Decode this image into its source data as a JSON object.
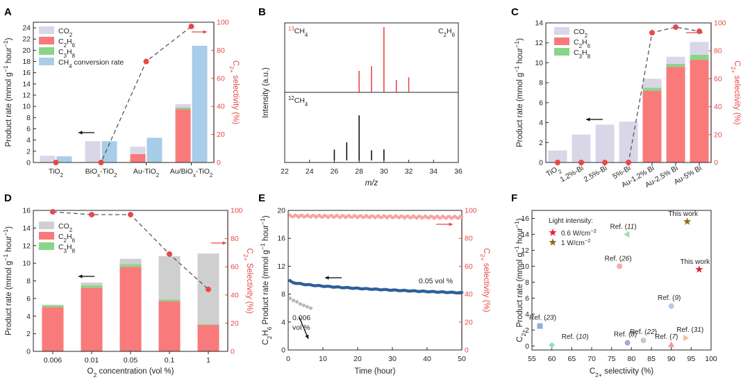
{
  "colors": {
    "co2": "#d9d6e8",
    "c2h6": "#f87a7a",
    "c3h8": "#8ad58a",
    "ch4": "#a8cde8",
    "sel": "#e84848",
    "sel_light": "#f7a3a3",
    "grey_bar": "#cfcfcf",
    "blue_line": "#2d5f9a",
    "grey_pts": "#b9b9b9",
    "axis": "#222222"
  },
  "chart_data": [
    {
      "panel": "A",
      "type": "bar",
      "categories": [
        "TiO2",
        "BiOx-TiO2",
        "Au-TiO2",
        "Au/BiOx-TiO2"
      ],
      "category_labels": [
        [
          "TiO",
          {
            "t": "2",
            "s": "sub"
          }
        ],
        [
          "BiO",
          {
            "t": "x",
            "s": "sub"
          },
          "-TiO",
          {
            "t": "2",
            "s": "sub"
          }
        ],
        [
          "Au-TiO",
          {
            "t": "2",
            "s": "sub"
          }
        ],
        [
          "Au/BiO",
          {
            "t": "x",
            "s": "sub"
          },
          "-TiO",
          {
            "t": "2",
            "s": "sub"
          }
        ]
      ],
      "series": [
        {
          "name": "CO2",
          "color": "co2",
          "values": [
            1.2,
            3.8,
            1.3,
            0.6
          ]
        },
        {
          "name": "C2H6",
          "color": "c2h6",
          "values": [
            0,
            0,
            1.5,
            9.5
          ]
        },
        {
          "name": "C3H8",
          "color": "c3h8",
          "values": [
            0,
            0,
            0,
            0.3
          ]
        },
        {
          "name": "CH4 conversion rate",
          "color": "ch4",
          "values": [
            1.1,
            3.8,
            4.4,
            20.8
          ]
        }
      ],
      "selectivity": [
        0,
        0,
        72,
        97
      ],
      "ylabel": "Product rate (mmol g-1 hour-1)",
      "ylabel_rich": [
        "Product rate (mmol g",
        {
          "t": "−1",
          "s": "sup"
        },
        " hour",
        {
          "t": "−1",
          "s": "sup"
        },
        ")"
      ],
      "y2label_rich": [
        "C",
        {
          "t": "2+",
          "s": "sub"
        },
        " selectivity (%)"
      ],
      "ylim": [
        0,
        25
      ],
      "yticks": [
        0,
        2,
        4,
        6,
        8,
        10,
        12,
        14,
        16,
        18,
        20,
        22,
        24
      ],
      "y2lim": [
        0,
        100
      ],
      "y2ticks": [
        0,
        20,
        40,
        60,
        80,
        100
      ],
      "legend": [
        {
          "rich": [
            "CO",
            {
              "t": "2",
              "s": "sub"
            }
          ],
          "color": "co2"
        },
        {
          "rich": [
            "C",
            {
              "t": "2",
              "s": "sub"
            },
            "H",
            {
              "t": "6",
              "s": "sub"
            }
          ],
          "color": "c2h6"
        },
        {
          "rich": [
            "C",
            {
              "t": "3",
              "s": "sub"
            },
            "H",
            {
              "t": "8",
              "s": "sub"
            }
          ],
          "color": "c3h8"
        },
        {
          "rich": [
            "CH",
            {
              "t": "4",
              "s": "sub"
            },
            " conversion rate"
          ],
          "color": "ch4"
        }
      ]
    },
    {
      "panel": "B",
      "type": "bar",
      "xlabel": "m/z",
      "ylabel": "Intensity (a.u.)",
      "xlim": [
        22,
        36
      ],
      "xticks": [
        22,
        24,
        26,
        28,
        30,
        32,
        34,
        36
      ],
      "top_label_rich": [
        {
          "t": "13",
          "s": "sup"
        },
        "CH",
        {
          "t": "4",
          "s": "sub"
        }
      ],
      "top_label_right_rich": [
        "C",
        {
          "t": "2",
          "s": "sub"
        },
        "H",
        {
          "t": "6",
          "s": "sub"
        }
      ],
      "bottom_label_rich": [
        {
          "t": "12",
          "s": "sup"
        },
        "CH",
        {
          "t": "4",
          "s": "sub"
        }
      ],
      "top_peaks": [
        {
          "x": 28,
          "y": 0.33
        },
        {
          "x": 29,
          "y": 0.4
        },
        {
          "x": 30,
          "y": 1.0
        },
        {
          "x": 31,
          "y": 0.19
        },
        {
          "x": 32,
          "y": 0.23
        }
      ],
      "bottom_peaks": [
        {
          "x": 26,
          "y": 0.15
        },
        {
          "x": 27,
          "y": 0.25
        },
        {
          "x": 28,
          "y": 0.62
        },
        {
          "x": 29,
          "y": 0.14
        },
        {
          "x": 30,
          "y": 0.15
        }
      ]
    },
    {
      "panel": "C",
      "type": "bar",
      "categories": [
        "TiO2",
        "1.2%-Bi",
        "2.5%-Bi",
        "5%-Bi",
        "Au-1.2% Bi",
        "Au-2.5% Bi",
        "Au-5% Bi"
      ],
      "category_labels": [
        [
          "TiO",
          {
            "t": "2",
            "s": "sub"
          }
        ],
        [
          "1.2%-Bi"
        ],
        [
          "2.5%-Bi"
        ],
        [
          "5%-Bi"
        ],
        [
          "Au-1.2% Bi"
        ],
        [
          "Au-2.5% Bi"
        ],
        [
          "Au-5% Bi"
        ]
      ],
      "series": [
        {
          "name": "CO2",
          "color": "co2",
          "values": [
            1.2,
            2.8,
            3.8,
            4.1,
            0.9,
            0.7,
            1.3
          ]
        },
        {
          "name": "C2H6",
          "color": "c2h6",
          "values": [
            0,
            0,
            0,
            0,
            7.2,
            9.6,
            10.3
          ]
        },
        {
          "name": "C3H8",
          "color": "c3h8",
          "values": [
            0,
            0,
            0,
            0,
            0.3,
            0.3,
            0.5
          ]
        }
      ],
      "selectivity": [
        0,
        0,
        0,
        0,
        93,
        97,
        94
      ],
      "ylabel_rich": [
        "Product rate (mmol g",
        {
          "t": "−1",
          "s": "sup"
        },
        " hour",
        {
          "t": "−1",
          "s": "sup"
        },
        ")"
      ],
      "y2label_rich": [
        "C",
        {
          "t": "2+",
          "s": "sub"
        },
        " selectivity (%)"
      ],
      "ylim": [
        0,
        14
      ],
      "yticks": [
        0,
        2,
        4,
        6,
        8,
        10,
        12,
        14
      ],
      "y2lim": [
        0,
        100
      ],
      "y2ticks": [
        0,
        20,
        40,
        60,
        80,
        100
      ],
      "legend": [
        {
          "rich": [
            "CO",
            {
              "t": "2",
              "s": "sub"
            }
          ],
          "color": "co2"
        },
        {
          "rich": [
            "C",
            {
              "t": "2",
              "s": "sub"
            },
            "H",
            {
              "t": "6",
              "s": "sub"
            }
          ],
          "color": "c2h6"
        },
        {
          "rich": [
            "C",
            {
              "t": "3",
              "s": "sub"
            },
            "H",
            {
              "t": "8",
              "s": "sub"
            }
          ],
          "color": "c3h8"
        }
      ]
    },
    {
      "panel": "D",
      "type": "bar",
      "categories": [
        "0.006",
        "0.01",
        "0.05",
        "0.1",
        "1"
      ],
      "series": [
        {
          "name": "CO2",
          "color": "grey_bar",
          "values": [
            0.1,
            0.3,
            0.6,
            4.9,
            8.0
          ]
        },
        {
          "name": "C2H6",
          "color": "c2h6",
          "values": [
            5.0,
            7.2,
            9.6,
            5.7,
            3.0
          ]
        },
        {
          "name": "C3H8",
          "color": "c3h8",
          "values": [
            0.2,
            0.3,
            0.3,
            0.2,
            0.1
          ]
        }
      ],
      "selectivity": [
        99,
        97,
        97,
        69,
        44
      ],
      "xlabel": "O2 concentration (vol %)",
      "xlabel_rich": [
        "O",
        {
          "t": "2",
          "s": "sub"
        },
        " concentration (vol %)"
      ],
      "ylabel_rich": [
        "Product rate (mmol g",
        {
          "t": "−1",
          "s": "sup"
        },
        " hour",
        {
          "t": "−1",
          "s": "sup"
        },
        ")"
      ],
      "y2label_rich": [
        "C",
        {
          "t": "2+",
          "s": "sub"
        },
        " Selectivity (%)"
      ],
      "ylim": [
        0,
        16
      ],
      "yticks": [
        0,
        2,
        4,
        6,
        8,
        10,
        12,
        14,
        16
      ],
      "y2lim": [
        0,
        100
      ],
      "y2ticks": [
        0,
        20,
        40,
        60,
        80,
        100
      ],
      "legend": [
        {
          "rich": [
            "CO",
            {
              "t": "2",
              "s": "sub"
            }
          ],
          "color": "grey_bar"
        },
        {
          "rich": [
            "C",
            {
              "t": "2",
              "s": "sub"
            },
            "H",
            {
              "t": "6",
              "s": "sub"
            }
          ],
          "color": "c2h6"
        },
        {
          "rich": [
            "C",
            {
              "t": "3",
              "s": "sub"
            },
            "H",
            {
              "t": "8",
              "s": "sub"
            }
          ],
          "color": "c3h8"
        }
      ]
    },
    {
      "panel": "E",
      "type": "scatter",
      "xlabel": "Time (hour)",
      "ylabel_rich": [
        "C",
        {
          "t": "2",
          "s": "sub"
        },
        "H",
        {
          "t": "6",
          "s": "sub"
        },
        " Product rate (mmol g",
        {
          "t": "−1",
          "s": "sup"
        },
        " hour",
        {
          "t": "−1",
          "s": "sup"
        },
        ")"
      ],
      "y2label_rich": [
        "C",
        {
          "t": "2+",
          "s": "sub"
        },
        " selectivity (%)"
      ],
      "xlim": [
        0,
        50
      ],
      "xticks": [
        0,
        10,
        20,
        30,
        40,
        50
      ],
      "ylim": [
        0,
        20
      ],
      "yticks": [
        0,
        4,
        8,
        12,
        16,
        20
      ],
      "y2lim": [
        0,
        100
      ],
      "y2ticks": [
        0,
        20,
        40,
        60,
        80,
        100
      ],
      "series": [
        {
          "name": "0.05 vol %",
          "color": "blue_line",
          "axis": "left",
          "x_start": 0.5,
          "x_end": 50,
          "y_start": 9.9,
          "y_end": 8.1
        },
        {
          "name": "selectivity",
          "color": "sel_light",
          "axis": "right",
          "x_start": 0.5,
          "x_end": 50,
          "y_start": 96,
          "y_end": 95
        },
        {
          "name": "0.006 vol %",
          "color": "grey_pts",
          "axis": "left",
          "x": [
            0.5,
            1.5,
            2.5,
            3.5,
            4.5,
            5.5,
            6.5
          ],
          "y": [
            7.4,
            7.1,
            6.9,
            6.6,
            6.4,
            6.2,
            6.0
          ]
        }
      ],
      "label_005": "0.05 vol %",
      "label_0006": [
        "0.006",
        "vol %"
      ]
    },
    {
      "panel": "F",
      "type": "scatter",
      "xlabel_rich": [
        "C",
        {
          "t": "2+",
          "s": "sub"
        },
        " selectivity (%)"
      ],
      "ylabel_rich": [
        "C",
        {
          "t": "2+",
          "s": "sub"
        },
        " Product rate (mmol g",
        {
          "t": "−1",
          "s": "sup"
        },
        " hour",
        {
          "t": "−1",
          "s": "sup"
        },
        ")"
      ],
      "xlim": [
        55,
        100
      ],
      "xticks": [
        55,
        60,
        65,
        70,
        75,
        80,
        85,
        90,
        95,
        100
      ],
      "ylim": [
        -0.5,
        17
      ],
      "yticks": [
        0,
        2,
        4,
        6,
        8,
        10,
        12,
        14,
        16
      ],
      "legend_title": "Light intensity:",
      "legend": [
        {
          "rich": [
            "0.6 W/cm",
            {
              "t": "−2",
              "s": "sup"
            }
          ],
          "color": "#e8202a"
        },
        {
          "rich": [
            "1 W/cm",
            {
              "t": "−2",
              "s": "sup"
            }
          ],
          "color": "#8a6d1e"
        }
      ],
      "points": [
        {
          "x": 94,
          "y": 15.6,
          "marker": "star",
          "color": "#8a6d1e",
          "label": "This work",
          "label_color": "#8a6d1e"
        },
        {
          "x": 97,
          "y": 9.6,
          "marker": "star",
          "color": "#e8202a",
          "label": "This work",
          "label_color": "#e8202a"
        },
        {
          "x": 79,
          "y": 14.0,
          "marker": "triangle-left",
          "color": "#9bdfb0",
          "label": "Ref. (11)"
        },
        {
          "x": 77,
          "y": 10.0,
          "marker": "circle",
          "color": "#f2aaaa",
          "label": "Ref. (26)"
        },
        {
          "x": 90,
          "y": 5.0,
          "marker": "circle",
          "color": "#b7c9ea",
          "label": "Ref. (9)"
        },
        {
          "x": 57,
          "y": 2.5,
          "marker": "square",
          "color": "#8fb1d6",
          "label": "Ref. (23)"
        },
        {
          "x": 60,
          "y": 0.1,
          "marker": "diamond",
          "color": "#8fe0b9",
          "label": "Ref. (10)"
        },
        {
          "x": 79,
          "y": 0.4,
          "marker": "circle",
          "color": "#a7a7cf",
          "label": "Ref. (8)"
        },
        {
          "x": 83,
          "y": 0.7,
          "marker": "circle",
          "color": "#c8c8c8",
          "label": "Ref. (22)"
        },
        {
          "x": 90,
          "y": 0.1,
          "marker": "triangle",
          "color": "#f59a9a",
          "label": "Ref. (7)"
        },
        {
          "x": 93.5,
          "y": 1.0,
          "marker": "triangle-right",
          "color": "#f5c196",
          "label": "Ref. (31)"
        }
      ]
    }
  ]
}
